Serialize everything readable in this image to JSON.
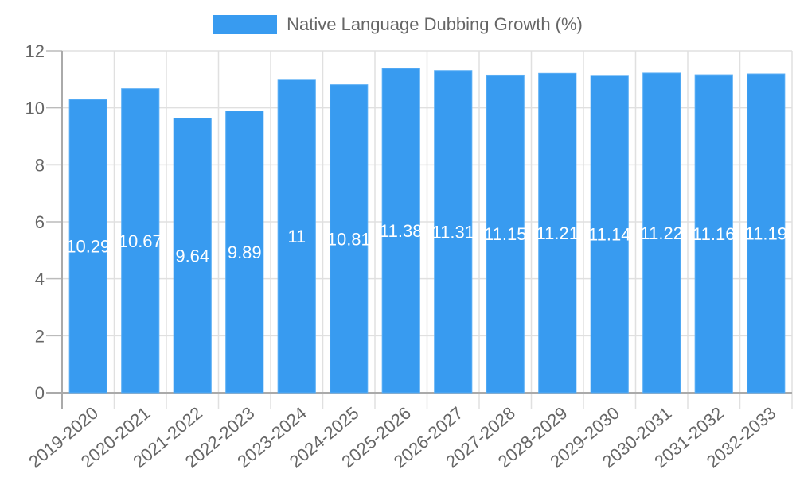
{
  "chart_data": {
    "type": "bar",
    "title": "",
    "legend": [
      {
        "label": "Native Language Dubbing Growth (%)",
        "color": "#389BF0"
      }
    ],
    "legend_position": "top",
    "xlabel": "",
    "ylabel": "",
    "ylim": [
      0,
      12
    ],
    "yticks": [
      0,
      2,
      4,
      6,
      8,
      10,
      12
    ],
    "grid": true,
    "categories": [
      "2019-2020",
      "2020-2021",
      "2021-2022",
      "2022-2023",
      "2023-2024",
      "2024-2025",
      "2025-2026",
      "2026-2027",
      "2027-2028",
      "2028-2029",
      "2029-2030",
      "2030-2031",
      "2031-2032",
      "2032-2033"
    ],
    "series": [
      {
        "name": "Native Language Dubbing Growth (%)",
        "color": "#389BF0",
        "values": [
          10.29,
          10.67,
          9.64,
          9.89,
          11,
          10.81,
          11.38,
          11.31,
          11.15,
          11.21,
          11.14,
          11.22,
          11.16,
          11.19
        ]
      }
    ],
    "data_labels": [
      "10.29",
      "10.67",
      "9.64",
      "9.89",
      "11",
      "10.81",
      "11.38",
      "11.31",
      "11.15",
      "11.21",
      "11.14",
      "11.22",
      "11.16",
      "11.19"
    ]
  }
}
